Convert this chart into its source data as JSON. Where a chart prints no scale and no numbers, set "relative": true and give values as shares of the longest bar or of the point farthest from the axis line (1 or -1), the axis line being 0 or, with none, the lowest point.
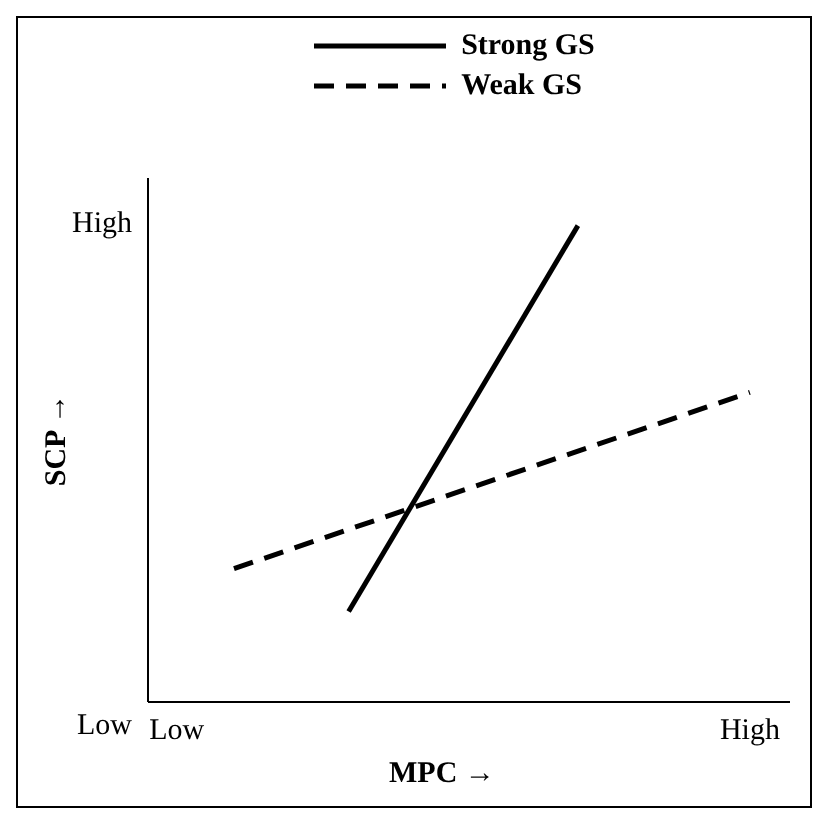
{
  "chart_data": {
    "type": "line",
    "xlabel": "MPC →",
    "ylabel": "SCP →",
    "relative": true,
    "categories": [
      "Low",
      null,
      null,
      null,
      null,
      null,
      null,
      null,
      null,
      null,
      "High"
    ],
    "annotations": [
      "Low",
      "High"
    ],
    "series": [
      {
        "name": "Strong GS",
        "color": "#000000",
        "line_style": "solid",
        "values": [
          null,
          null,
          null,
          0.19,
          null,
          null,
          null,
          1,
          null,
          null,
          null
        ]
      },
      {
        "name": "Weak GS",
        "color": "#000000",
        "line_style": "dashed",
        "values": [
          null,
          0.28,
          null,
          null,
          null,
          null,
          null,
          null,
          null,
          null,
          0.65
        ]
      }
    ],
    "legend": "top",
    "grid": false,
    "marker": "none"
  }
}
